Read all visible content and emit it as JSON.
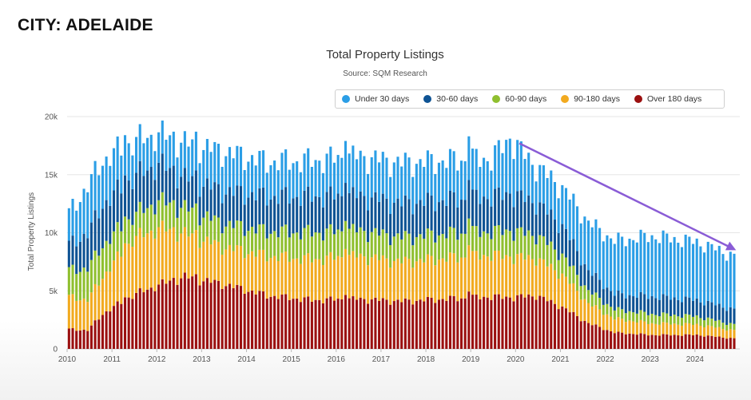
{
  "heading": "CITY: ADELAIDE",
  "chart_data": {
    "type": "bar",
    "stacked": true,
    "title": "Total Property Listings",
    "subtitle": "Source: SQM Research",
    "xlabel": "",
    "ylabel": "Total Property Listings",
    "ylim": [
      0,
      20000
    ],
    "y_ticks": [
      "0",
      "5k",
      "10k",
      "15k",
      "20k"
    ],
    "x_ticks": [
      "2010",
      "2011",
      "2012",
      "2013",
      "2014",
      "2015",
      "2016",
      "2017",
      "2018",
      "2019",
      "2020",
      "2021",
      "2022",
      "2023",
      "2024"
    ],
    "x_range": [
      "2010-01",
      "2024-11"
    ],
    "grid": true,
    "legend_position": "top-right",
    "series": [
      {
        "name": "Under 30 days",
        "color": "#2b9ee6"
      },
      {
        "name": "30-60 days",
        "color": "#0e5394"
      },
      {
        "name": "60-90 days",
        "color": "#8fbf2f"
      },
      {
        "name": "90-180 days",
        "color": "#f2aa1f"
      },
      {
        "name": "Over 180 days",
        "color": "#9b1010"
      }
    ],
    "keyframes": [
      {
        "date": "2010-01",
        "over180": 1700,
        "d90_180": 2800,
        "d60_90": 2300,
        "d30_60": 2200,
        "under30": 2700,
        "total": 11700
      },
      {
        "date": "2010-06",
        "over180": 1600,
        "d90_180": 2600,
        "d60_90": 2700,
        "d30_60": 3000,
        "under30": 4100,
        "total": 14000
      },
      {
        "date": "2010-10",
        "over180": 3000,
        "d90_180": 3200,
        "d60_90": 2700,
        "d30_60": 3500,
        "under30": 3800,
        "total": 16200
      },
      {
        "date": "2011-06",
        "over180": 4600,
        "d90_180": 4800,
        "d60_90": 2000,
        "d30_60": 3300,
        "under30": 3100,
        "total": 17800
      },
      {
        "date": "2012-01",
        "over180": 5500,
        "d90_180": 4900,
        "d60_90": 2300,
        "d30_60": 3200,
        "under30": 2600,
        "total": 18500
      },
      {
        "date": "2012-08",
        "over180": 6200,
        "d90_180": 3700,
        "d60_90": 2200,
        "d30_60": 2600,
        "under30": 3000,
        "total": 17700
      },
      {
        "date": "2013-06",
        "over180": 5600,
        "d90_180": 3200,
        "d60_90": 2000,
        "d30_60": 2800,
        "under30": 3400,
        "total": 17000
      },
      {
        "date": "2014-06",
        "over180": 4600,
        "d90_180": 3400,
        "d60_90": 2100,
        "d30_60": 3000,
        "under30": 3000,
        "total": 16100
      },
      {
        "date": "2015-06",
        "over180": 4200,
        "d90_180": 3500,
        "d60_90": 2300,
        "d30_60": 3100,
        "under30": 3100,
        "total": 16200
      },
      {
        "date": "2016-06",
        "over180": 4300,
        "d90_180": 3700,
        "d60_90": 2200,
        "d30_60": 3000,
        "under30": 3400,
        "total": 16600
      },
      {
        "date": "2017-06",
        "over180": 4100,
        "d90_180": 3400,
        "d60_90": 2100,
        "d30_60": 2900,
        "under30": 3500,
        "total": 16000
      },
      {
        "date": "2018-06",
        "over180": 4300,
        "d90_180": 3500,
        "d60_90": 2100,
        "d30_60": 2900,
        "under30": 3400,
        "total": 16200
      },
      {
        "date": "2019-06",
        "over180": 4500,
        "d90_180": 3600,
        "d60_90": 2000,
        "d30_60": 3000,
        "under30": 3300,
        "total": 16400
      },
      {
        "date": "2019-11",
        "over180": 4400,
        "d90_180": 3500,
        "d60_90": 2200,
        "d30_60": 3200,
        "under30": 4700,
        "total": 18000
      },
      {
        "date": "2020-06",
        "over180": 4600,
        "d90_180": 3200,
        "d60_90": 2000,
        "d30_60": 2800,
        "under30": 3100,
        "total": 15700
      },
      {
        "date": "2021-01",
        "over180": 3600,
        "d90_180": 2800,
        "d60_90": 1700,
        "d30_60": 2500,
        "under30": 3300,
        "total": 13900
      },
      {
        "date": "2021-08",
        "over180": 2200,
        "d90_180": 1700,
        "d60_90": 1100,
        "d30_60": 1700,
        "under30": 4200,
        "total": 10900
      },
      {
        "date": "2022-03",
        "over180": 1400,
        "d90_180": 1200,
        "d60_90": 800,
        "d30_60": 1300,
        "under30": 4600,
        "total": 9300
      },
      {
        "date": "2023-01",
        "over180": 1200,
        "d90_180": 1000,
        "d60_90": 800,
        "d30_60": 1500,
        "under30": 5200,
        "total": 9700
      },
      {
        "date": "2024-01",
        "over180": 1200,
        "d90_180": 900,
        "d60_90": 700,
        "d30_60": 1400,
        "under30": 5000,
        "total": 9200
      },
      {
        "date": "2024-11",
        "over180": 900,
        "d90_180": 700,
        "d60_90": 500,
        "d30_60": 1300,
        "under30": 4600,
        "total": 8000
      }
    ],
    "peaks": [
      {
        "date": "2011-04",
        "total": 18400
      },
      {
        "date": "2012-05",
        "total": 18700
      },
      {
        "date": "2012-11",
        "total": 18700
      },
      {
        "date": "2016-03",
        "total": 17900
      },
      {
        "date": "2018-12",
        "total": 18300
      },
      {
        "date": "2019-11",
        "total": 18100
      }
    ],
    "annotation": {
      "type": "arrow",
      "color": "#8a5cd6",
      "from": "2020-02",
      "to": "2024-12",
      "y_from": 17700,
      "y_to": 8500
    }
  }
}
